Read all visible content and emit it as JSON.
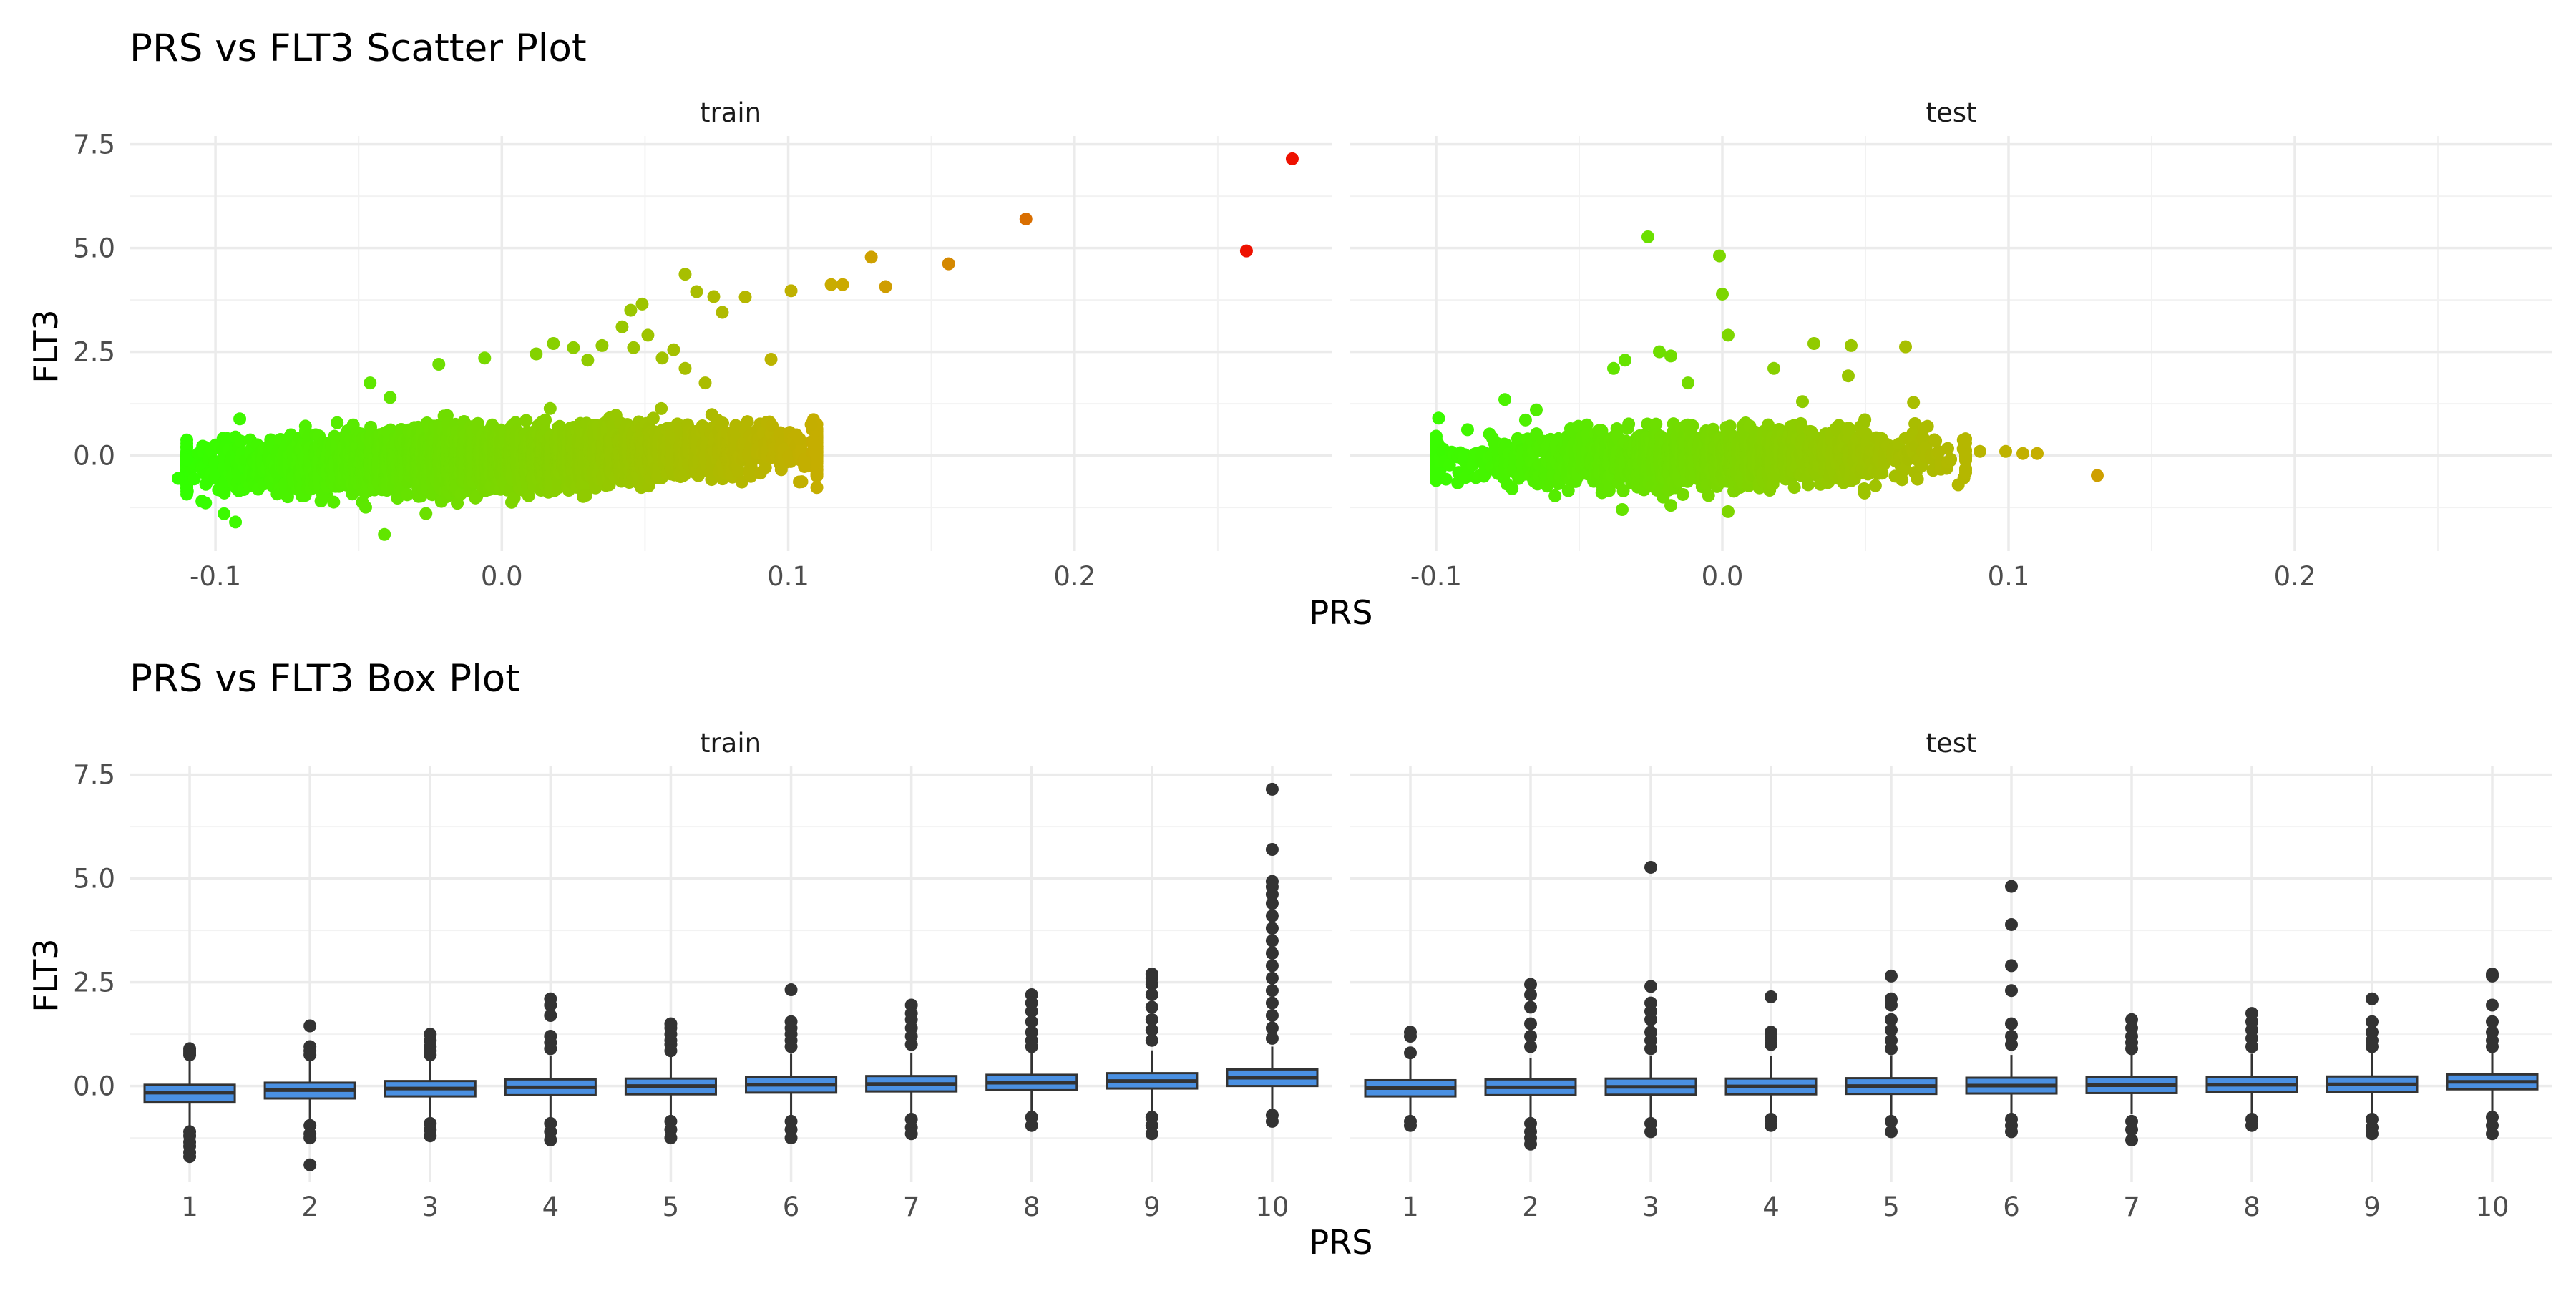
{
  "chart_data": [
    {
      "type": "scatter",
      "title": "PRS vs FLT3 Scatter Plot",
      "xlabel": "PRS",
      "ylabel": "FLT3",
      "facets": [
        "train",
        "test"
      ],
      "xlim": [
        -0.13,
        0.29
      ],
      "ylim": [
        -2.3,
        7.7
      ],
      "x_ticks": [
        -0.1,
        0.0,
        0.1,
        0.2
      ],
      "x_tick_labels": [
        "-0.1",
        "0.0",
        "0.1",
        "0.2"
      ],
      "y_ticks": [
        0.0,
        2.5,
        5.0,
        7.5
      ],
      "y_tick_labels": [
        "0.0",
        "2.5",
        "5.0",
        "7.5"
      ],
      "grid": true,
      "legend": "none",
      "color_scale": {
        "low": "#33ff00",
        "mid": "#ccaa00",
        "high": "#ee1100",
        "by": "y"
      },
      "panels": [
        {
          "facet": "train",
          "bulk_summary": {
            "x_min": -0.11,
            "x_max": 0.11,
            "y_min": -1.8,
            "y_max": 1.5,
            "n_estimated": 5000
          },
          "points": [
            [
              0.276,
              7.15
            ],
            [
              0.183,
              5.7
            ],
            [
              0.26,
              4.93
            ],
            [
              0.156,
              4.62
            ],
            [
              0.129,
              4.78
            ],
            [
              0.134,
              4.07
            ],
            [
              0.119,
              4.12
            ],
            [
              0.115,
              4.12
            ],
            [
              0.101,
              3.97
            ],
            [
              0.085,
              3.82
            ],
            [
              0.064,
              4.37
            ],
            [
              0.068,
              3.95
            ],
            [
              0.074,
              3.83
            ],
            [
              0.077,
              3.45
            ],
            [
              0.094,
              2.32
            ],
            [
              0.049,
              3.65
            ],
            [
              0.045,
              3.5
            ],
            [
              0.042,
              3.1
            ],
            [
              0.046,
              2.6
            ],
            [
              0.051,
              2.9
            ],
            [
              0.035,
              2.65
            ],
            [
              0.056,
              2.35
            ],
            [
              0.06,
              2.55
            ],
            [
              0.064,
              2.1
            ],
            [
              0.071,
              1.75
            ],
            [
              0.018,
              2.7
            ],
            [
              0.025,
              2.6
            ],
            [
              0.03,
              2.3
            ],
            [
              0.012,
              2.45
            ],
            [
              -0.006,
              2.35
            ],
            [
              -0.022,
              2.2
            ],
            [
              -0.046,
              1.75
            ],
            [
              -0.039,
              1.4
            ],
            [
              0.108,
              0.75
            ],
            [
              0.104,
              0.4
            ],
            [
              -0.097,
              -1.4
            ],
            [
              -0.093,
              -1.6
            ],
            [
              -0.041,
              -1.9
            ],
            [
              -0.11,
              -0.1
            ],
            [
              -0.113,
              -0.55
            ]
          ]
        },
        {
          "facet": "test",
          "bulk_summary": {
            "x_min": -0.1,
            "x_max": 0.085,
            "y_min": -1.4,
            "y_max": 1.6,
            "n_estimated": 2000
          },
          "points": [
            [
              -0.026,
              5.27
            ],
            [
              -0.001,
              4.81
            ],
            [
              0.0,
              3.89
            ],
            [
              -0.018,
              2.4
            ],
            [
              0.002,
              2.9
            ],
            [
              -0.022,
              2.5
            ],
            [
              0.032,
              2.7
            ],
            [
              0.045,
              2.65
            ],
            [
              0.064,
              2.62
            ],
            [
              0.044,
              1.92
            ],
            [
              -0.034,
              2.3
            ],
            [
              -0.038,
              2.1
            ],
            [
              0.018,
              2.1
            ],
            [
              -0.012,
              1.75
            ],
            [
              0.028,
              1.3
            ],
            [
              -0.076,
              1.35
            ],
            [
              -0.065,
              1.1
            ],
            [
              0.131,
              -0.48
            ],
            [
              0.11,
              0.05
            ],
            [
              0.105,
              0.05
            ],
            [
              0.099,
              0.1
            ],
            [
              0.09,
              0.1
            ],
            [
              0.085,
              0.4
            ],
            [
              -0.1,
              -0.45
            ],
            [
              0.002,
              -1.35
            ],
            [
              -0.018,
              -1.2
            ],
            [
              -0.035,
              -1.3
            ]
          ]
        }
      ]
    },
    {
      "type": "box",
      "title": "PRS vs FLT3 Box Plot",
      "xlabel": "PRS",
      "ylabel": "FLT3",
      "facets": [
        "train",
        "test"
      ],
      "categories": [
        "1",
        "2",
        "3",
        "4",
        "5",
        "6",
        "7",
        "8",
        "9",
        "10"
      ],
      "ylim": [
        -2.3,
        7.7
      ],
      "y_ticks": [
        0.0,
        2.5,
        5.0,
        7.5
      ],
      "y_tick_labels": [
        "0.0",
        "2.5",
        "5.0",
        "7.5"
      ],
      "grid": true,
      "legend": "none",
      "box_fill": "#4a90e2",
      "panels": [
        {
          "facet": "train",
          "boxes": [
            {
              "category": "1",
              "q1": -0.38,
              "median": -0.16,
              "q3": 0.03,
              "whisker_low": -0.98,
              "whisker_high": 0.62,
              "outliers": [
                0.8,
                0.85,
                0.9,
                0.75,
                -1.1,
                -1.2,
                -1.35,
                -1.45,
                -1.6,
                -1.7
              ]
            },
            {
              "category": "2",
              "q1": -0.3,
              "median": -0.1,
              "q3": 0.08,
              "whisker_low": -0.85,
              "whisker_high": 0.65,
              "outliers": [
                1.45,
                0.95,
                0.85,
                0.75,
                -0.95,
                -1.15,
                -1.25,
                -1.9
              ]
            },
            {
              "category": "3",
              "q1": -0.25,
              "median": -0.06,
              "q3": 0.12,
              "whisker_low": -0.8,
              "whisker_high": 0.68,
              "outliers": [
                1.25,
                1.1,
                0.95,
                0.85,
                0.75,
                -0.9,
                -1.05,
                -1.2
              ]
            },
            {
              "category": "4",
              "q1": -0.22,
              "median": -0.03,
              "q3": 0.16,
              "whisker_low": -0.78,
              "whisker_high": 0.72,
              "outliers": [
                2.1,
                1.95,
                1.7,
                1.2,
                1.05,
                0.9,
                -0.9,
                -1.1,
                -1.3
              ]
            },
            {
              "category": "5",
              "q1": -0.2,
              "median": 0.0,
              "q3": 0.18,
              "whisker_low": -0.75,
              "whisker_high": 0.74,
              "outliers": [
                1.5,
                1.4,
                1.25,
                1.1,
                1.0,
                0.85,
                -0.85,
                -1.05,
                -1.25
              ]
            },
            {
              "category": "6",
              "q1": -0.16,
              "median": 0.03,
              "q3": 0.22,
              "whisker_low": -0.72,
              "whisker_high": 0.78,
              "outliers": [
                2.32,
                1.55,
                1.4,
                1.25,
                1.1,
                0.95,
                -0.85,
                -1.05,
                -1.25
              ]
            },
            {
              "category": "7",
              "q1": -0.13,
              "median": 0.05,
              "q3": 0.24,
              "whisker_low": -0.7,
              "whisker_high": 0.8,
              "outliers": [
                1.95,
                1.75,
                1.6,
                1.4,
                1.2,
                1.0,
                -0.8,
                -1.0,
                -1.15
              ]
            },
            {
              "category": "8",
              "q1": -0.1,
              "median": 0.08,
              "q3": 0.27,
              "whisker_low": -0.65,
              "whisker_high": 0.82,
              "outliers": [
                2.2,
                2.0,
                1.8,
                1.55,
                1.3,
                1.1,
                0.95,
                -0.75,
                -0.95
              ]
            },
            {
              "category": "9",
              "q1": -0.06,
              "median": 0.12,
              "q3": 0.31,
              "whisker_low": -0.6,
              "whisker_high": 0.86,
              "outliers": [
                2.7,
                2.6,
                2.45,
                2.2,
                1.9,
                1.6,
                1.35,
                1.1,
                -0.75,
                -0.95,
                -1.15
              ]
            },
            {
              "category": "10",
              "q1": 0.0,
              "median": 0.2,
              "q3": 0.4,
              "whisker_low": -0.55,
              "whisker_high": 0.95,
              "outliers": [
                7.15,
                5.7,
                4.93,
                4.8,
                4.62,
                4.4,
                4.1,
                3.8,
                3.5,
                3.2,
                2.9,
                2.6,
                2.3,
                2.0,
                1.7,
                1.4,
                1.15,
                -0.7,
                -0.85
              ]
            }
          ]
        },
        {
          "facet": "test",
          "boxes": [
            {
              "category": "1",
              "q1": -0.25,
              "median": -0.05,
              "q3": 0.14,
              "whisker_low": -0.75,
              "whisker_high": 0.65,
              "outliers": [
                1.3,
                1.2,
                0.8,
                -0.85,
                -0.95
              ]
            },
            {
              "category": "2",
              "q1": -0.22,
              "median": -0.03,
              "q3": 0.16,
              "whisker_low": -0.75,
              "whisker_high": 0.68,
              "outliers": [
                2.45,
                2.2,
                1.9,
                1.5,
                1.2,
                0.95,
                -0.9,
                -1.1,
                -1.25,
                -1.4
              ]
            },
            {
              "category": "3",
              "q1": -0.21,
              "median": -0.02,
              "q3": 0.18,
              "whisker_low": -0.75,
              "whisker_high": 0.72,
              "outliers": [
                5.27,
                2.4,
                2.0,
                1.8,
                1.6,
                1.3,
                1.1,
                0.9,
                -0.9,
                -1.1
              ]
            },
            {
              "category": "4",
              "q1": -0.2,
              "median": -0.01,
              "q3": 0.18,
              "whisker_low": -0.72,
              "whisker_high": 0.72,
              "outliers": [
                2.15,
                1.3,
                1.15,
                1.0,
                -0.8,
                -0.95
              ]
            },
            {
              "category": "5",
              "q1": -0.19,
              "median": 0.0,
              "q3": 0.19,
              "whisker_low": -0.72,
              "whisker_high": 0.74,
              "outliers": [
                2.65,
                2.1,
                1.95,
                1.6,
                1.35,
                1.1,
                0.9,
                -0.85,
                -1.1
              ]
            },
            {
              "category": "6",
              "q1": -0.18,
              "median": 0.01,
              "q3": 0.2,
              "whisker_low": -0.7,
              "whisker_high": 0.75,
              "outliers": [
                4.81,
                3.89,
                2.9,
                2.3,
                1.5,
                1.2,
                1.0,
                -0.8,
                -0.95,
                -1.1
              ]
            },
            {
              "category": "7",
              "q1": -0.17,
              "median": 0.02,
              "q3": 0.21,
              "whisker_low": -0.68,
              "whisker_high": 0.76,
              "outliers": [
                1.6,
                1.4,
                1.2,
                1.05,
                0.9,
                -0.85,
                -1.05,
                -1.3
              ]
            },
            {
              "category": "8",
              "q1": -0.15,
              "median": 0.03,
              "q3": 0.22,
              "whisker_low": -0.66,
              "whisker_high": 0.78,
              "outliers": [
                1.75,
                1.55,
                1.35,
                1.15,
                0.95,
                -0.8,
                -0.95
              ]
            },
            {
              "category": "9",
              "q1": -0.14,
              "median": 0.04,
              "q3": 0.23,
              "whisker_low": -0.66,
              "whisker_high": 0.8,
              "outliers": [
                2.1,
                1.55,
                1.3,
                1.1,
                0.95,
                -0.8,
                -1.0,
                -1.15
              ]
            },
            {
              "category": "10",
              "q1": -0.08,
              "median": 0.1,
              "q3": 0.28,
              "whisker_low": -0.6,
              "whisker_high": 0.85,
              "outliers": [
                2.7,
                2.65,
                1.95,
                1.55,
                1.3,
                1.1,
                0.95,
                -0.75,
                -0.95,
                -1.15
              ]
            }
          ]
        }
      ]
    }
  ]
}
